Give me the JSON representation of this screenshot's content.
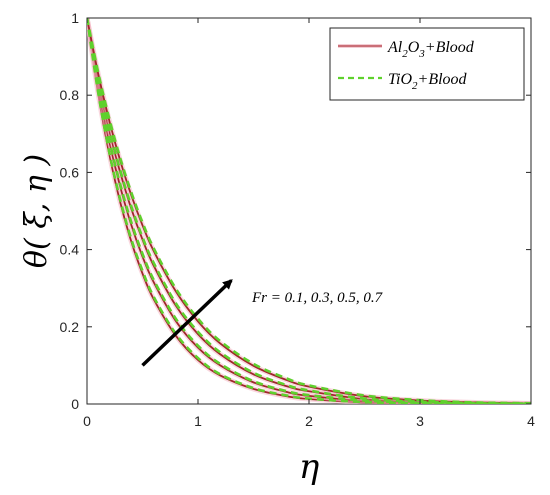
{
  "chart_data": {
    "type": "line",
    "xlabel": "η",
    "ylabel": "θ( ξ, η )",
    "xlim": [
      0,
      4
    ],
    "ylim": [
      0,
      1
    ],
    "xticks": [
      "0",
      "1",
      "2",
      "3",
      "4"
    ],
    "yticks": [
      "0",
      "0.2",
      "0.4",
      "0.6",
      "0.8",
      "1"
    ],
    "grid": false,
    "legend_position": "top-right",
    "legend": [
      {
        "base": "Al",
        "sub1": "2",
        "mid": "O",
        "sub2": "3",
        "rest": "+Blood",
        "style": "solid",
        "color": "#a0262a"
      },
      {
        "base": "TiO",
        "sub1": "2",
        "mid": "",
        "sub2": "",
        "rest": "+Blood",
        "style": "dashed",
        "color": "#5fd12d"
      }
    ],
    "annotation": {
      "text": "Fr = 0.1, 0.3, 0.5, 0.7",
      "arrow_from": [
        0.5,
        0.1
      ],
      "arrow_to": [
        1.3,
        0.32
      ]
    },
    "parameter": "Fr",
    "parameter_values": [
      0.1,
      0.3,
      0.5,
      0.7
    ],
    "x": [
      0,
      0.1,
      0.2,
      0.3,
      0.4,
      0.5,
      0.6,
      0.8,
      1.0,
      1.2,
      1.5,
      1.8,
      2.0,
      2.5,
      3.0,
      3.5,
      4.0
    ],
    "series": [
      {
        "fluid": "Al2O3+Blood",
        "Fr": 0.1,
        "values": [
          1,
          0.805,
          0.648,
          0.522,
          0.42,
          0.338,
          0.272,
          0.177,
          0.114,
          0.074,
          0.039,
          0.02,
          0.013,
          0.004,
          0.001,
          0.0003,
          0.0001
        ]
      },
      {
        "fluid": "Al2O3+Blood",
        "Fr": 0.3,
        "values": [
          1,
          0.825,
          0.681,
          0.562,
          0.463,
          0.382,
          0.316,
          0.215,
          0.146,
          0.1,
          0.056,
          0.031,
          0.021,
          0.008,
          0.003,
          0.001,
          0.0003
        ]
      },
      {
        "fluid": "Al2O3+Blood",
        "Fr": 0.5,
        "values": [
          1,
          0.843,
          0.71,
          0.599,
          0.505,
          0.426,
          0.359,
          0.255,
          0.181,
          0.129,
          0.077,
          0.046,
          0.033,
          0.013,
          0.005,
          0.002,
          0.0008
        ]
      },
      {
        "fluid": "Al2O3+Blood",
        "Fr": 0.7,
        "values": [
          1,
          0.857,
          0.735,
          0.63,
          0.54,
          0.463,
          0.397,
          0.292,
          0.214,
          0.157,
          0.099,
          0.062,
          0.045,
          0.02,
          0.009,
          0.004,
          0.0017
        ]
      },
      {
        "fluid": "TiO2+Blood",
        "Fr": 0.1,
        "values": [
          1,
          0.808,
          0.653,
          0.528,
          0.426,
          0.345,
          0.278,
          0.182,
          0.119,
          0.077,
          0.041,
          0.022,
          0.014,
          0.005,
          0.0015,
          0.0005,
          0.0001
        ]
      },
      {
        "fluid": "TiO2+Blood",
        "Fr": 0.3,
        "values": [
          1,
          0.828,
          0.686,
          0.568,
          0.47,
          0.389,
          0.322,
          0.221,
          0.151,
          0.104,
          0.059,
          0.033,
          0.023,
          0.009,
          0.003,
          0.001,
          0.0004
        ]
      },
      {
        "fluid": "TiO2+Blood",
        "Fr": 0.5,
        "values": [
          1,
          0.846,
          0.715,
          0.605,
          0.511,
          0.432,
          0.366,
          0.261,
          0.187,
          0.134,
          0.081,
          0.049,
          0.035,
          0.014,
          0.006,
          0.002,
          0.0009
        ]
      },
      {
        "fluid": "TiO2+Blood",
        "Fr": 0.7,
        "values": [
          1,
          0.86,
          0.74,
          0.636,
          0.547,
          0.47,
          0.404,
          0.299,
          0.221,
          0.163,
          0.104,
          0.066,
          0.048,
          0.022,
          0.01,
          0.004,
          0.0019
        ]
      }
    ]
  }
}
